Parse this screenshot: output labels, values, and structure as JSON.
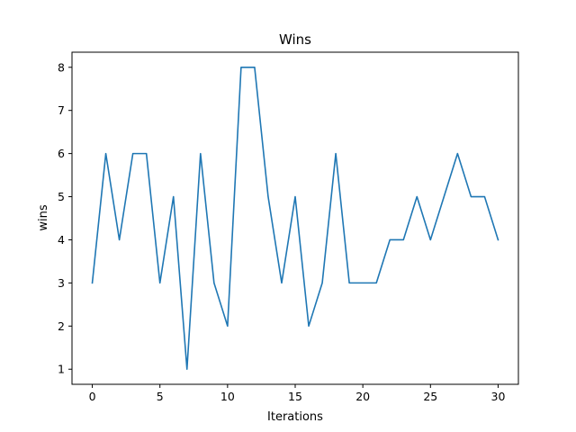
{
  "chart_data": {
    "type": "line",
    "title": "Wins",
    "xlabel": "Iterations",
    "ylabel": "wins",
    "xlim": [
      -1.5,
      31.5
    ],
    "ylim": [
      0.65,
      8.35
    ],
    "xticks": [
      0,
      5,
      10,
      15,
      20,
      25,
      30
    ],
    "yticks": [
      1,
      2,
      3,
      4,
      5,
      6,
      7,
      8
    ],
    "grid": false,
    "series": [
      {
        "color": "#1f77b4",
        "x": [
          0,
          1,
          2,
          3,
          4,
          5,
          6,
          7,
          8,
          9,
          10,
          11,
          12,
          13,
          14,
          15,
          16,
          17,
          18,
          19,
          20,
          21,
          22,
          23,
          24,
          25,
          26,
          27,
          28,
          29,
          30
        ],
        "values": [
          3,
          6,
          4,
          6,
          6,
          3,
          5,
          1,
          6,
          3,
          2,
          8,
          8,
          5,
          3,
          5,
          2,
          3,
          6,
          3,
          3,
          3,
          4,
          4,
          5,
          4,
          5,
          6,
          5,
          5,
          4
        ]
      }
    ]
  }
}
